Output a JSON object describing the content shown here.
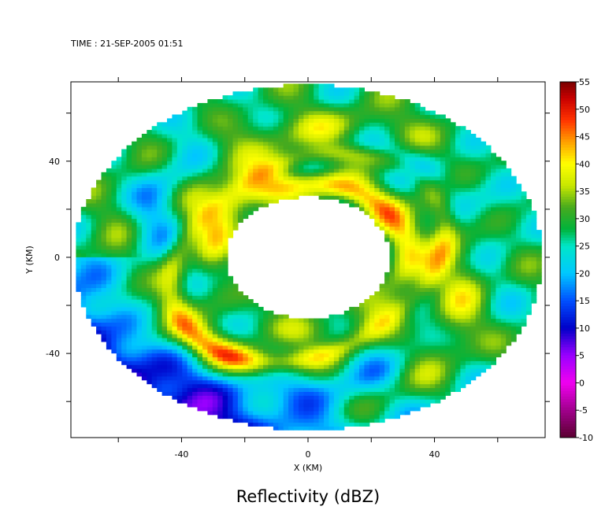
{
  "header": {
    "time_label": "TIME : 21-SEP-2005 01:51"
  },
  "chart_data": {
    "type": "heatmap",
    "title": "Reflectivity (dBZ)",
    "xlabel": "X (KM)",
    "ylabel": "Y (KM)",
    "xlim": [
      -75,
      75
    ],
    "ylim": [
      -75,
      73
    ],
    "x_ticks": [
      -40,
      0,
      40
    ],
    "y_ticks": [
      -40,
      0,
      40
    ],
    "colorbar": {
      "ticks": [
        55,
        50,
        45,
        40,
        35,
        30,
        25,
        20,
        15,
        10,
        5,
        0,
        -5,
        -10
      ],
      "range": [
        -10,
        55
      ],
      "colors": [
        {
          "v": -10,
          "c": "#5a0030"
        },
        {
          "v": -5,
          "c": "#a0008c"
        },
        {
          "v": 0,
          "c": "#f000f0"
        },
        {
          "v": 5,
          "c": "#9a00ff"
        },
        {
          "v": 10,
          "c": "#0000c8"
        },
        {
          "v": 15,
          "c": "#0050ff"
        },
        {
          "v": 20,
          "c": "#00c8ff"
        },
        {
          "v": 25,
          "c": "#00e6c8"
        },
        {
          "v": 28,
          "c": "#00b43c"
        },
        {
          "v": 32,
          "c": "#46aa1e"
        },
        {
          "v": 36,
          "c": "#c8e600"
        },
        {
          "v": 40,
          "c": "#ffff00"
        },
        {
          "v": 44,
          "c": "#ffa000"
        },
        {
          "v": 48,
          "c": "#ff3200"
        },
        {
          "v": 52,
          "c": "#c80000"
        },
        {
          "v": 55,
          "c": "#780000"
        }
      ]
    },
    "domain": {
      "center": [
        0,
        0
      ],
      "inner_radius_km": 26,
      "outer_radius_km": 74
    },
    "features": "annular reflectivity field around an empty eye; strongest echoes (40-50 dBZ) in the inner eyewall ring, spiral rainbands of 30-40 dBZ, weak 10-25 dBZ echoes on the south-west outer edge"
  }
}
